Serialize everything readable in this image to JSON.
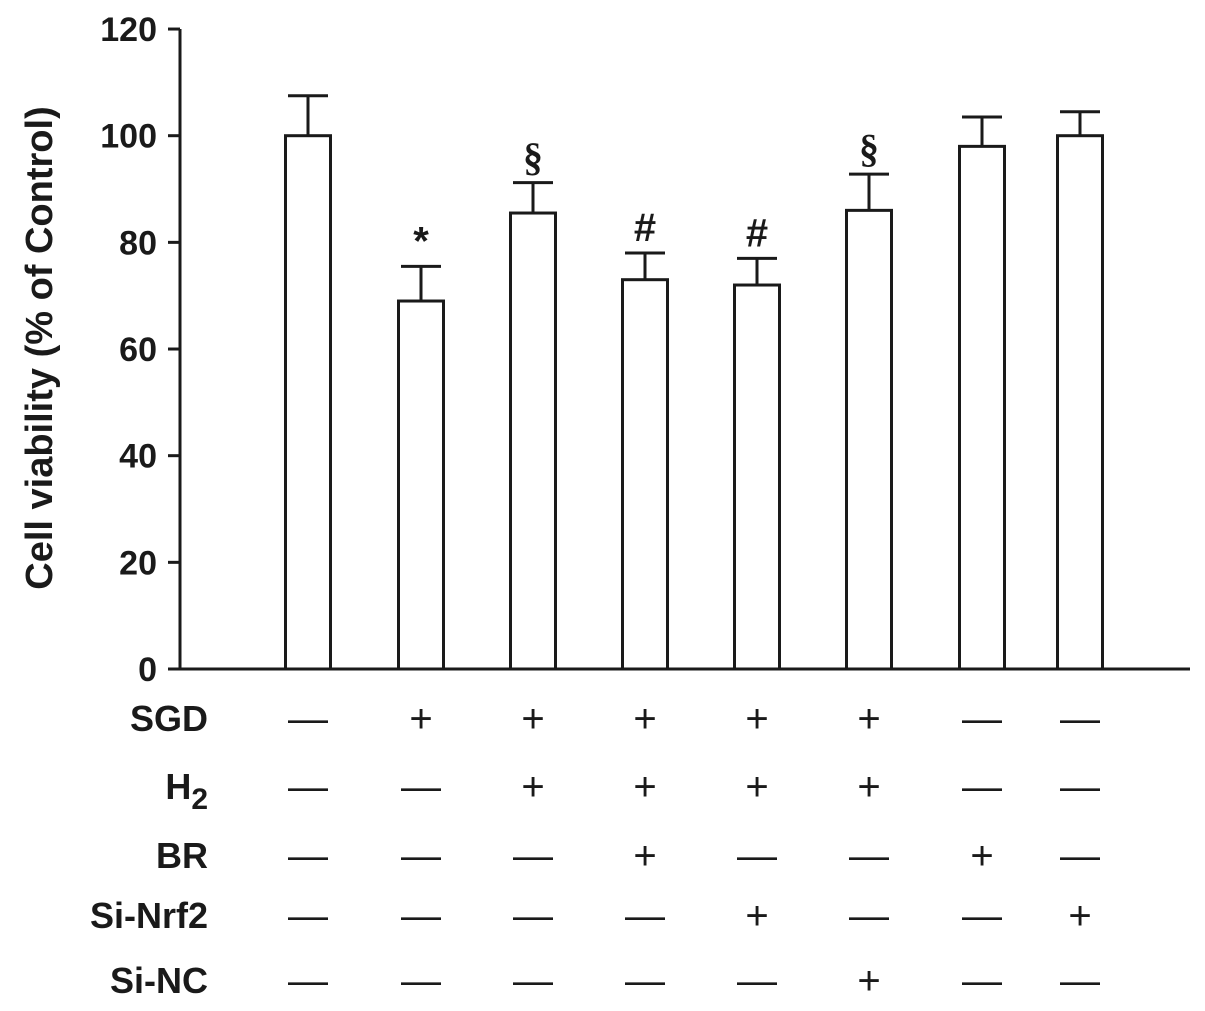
{
  "chart_data": {
    "type": "bar",
    "ylabel": "Cell viability (% of Control)",
    "ylim": [
      0,
      120
    ],
    "yticks": [
      "0",
      "20",
      "40",
      "60",
      "80",
      "100",
      "120"
    ],
    "values": [
      100,
      69,
      85.5,
      73,
      72,
      86,
      98,
      100
    ],
    "errors": [
      7.5,
      6.5,
      5.7,
      5,
      5,
      6.8,
      5.5,
      4.5
    ],
    "significance": [
      "",
      "*",
      "§",
      "#",
      "#",
      "§",
      "",
      ""
    ],
    "bar_color": "#ffffff",
    "edge_color": "#1a1a1a",
    "conditions": [
      {
        "label": "SGD",
        "sub": "",
        "values": [
          "—",
          "+",
          "+",
          "+",
          "+",
          "+",
          "—",
          "—"
        ]
      },
      {
        "label": "H",
        "sub": "2",
        "values": [
          "—",
          "—",
          "+",
          "+",
          "+",
          "+",
          "—",
          "—"
        ]
      },
      {
        "label": "BR",
        "sub": "",
        "values": [
          "—",
          "—",
          "—",
          "+",
          "—",
          "—",
          "+",
          "—"
        ]
      },
      {
        "label": "Si-Nrf2",
        "sub": "",
        "values": [
          "—",
          "—",
          "—",
          "—",
          "+",
          "—",
          "—",
          "+"
        ]
      },
      {
        "label": "Si-NC",
        "sub": "",
        "values": [
          "—",
          "—",
          "—",
          "—",
          "—",
          "+",
          "—",
          "—"
        ]
      }
    ]
  }
}
